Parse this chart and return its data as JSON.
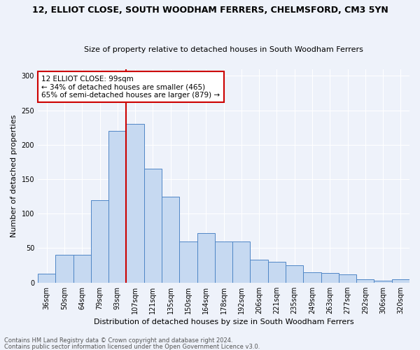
{
  "title": "12, ELLIOT CLOSE, SOUTH WOODHAM FERRERS, CHELMSFORD, CM3 5YN",
  "subtitle": "Size of property relative to detached houses in South Woodham Ferrers",
  "xlabel": "Distribution of detached houses by size in South Woodham Ferrers",
  "ylabel": "Number of detached properties",
  "categories": [
    "36sqm",
    "50sqm",
    "64sqm",
    "79sqm",
    "93sqm",
    "107sqm",
    "121sqm",
    "135sqm",
    "150sqm",
    "164sqm",
    "178sqm",
    "192sqm",
    "206sqm",
    "221sqm",
    "235sqm",
    "249sqm",
    "263sqm",
    "277sqm",
    "292sqm",
    "306sqm",
    "320sqm"
  ],
  "values": [
    13,
    40,
    40,
    120,
    220,
    230,
    165,
    125,
    60,
    72,
    60,
    60,
    33,
    30,
    25,
    15,
    14,
    12,
    5,
    3,
    5
  ],
  "bar_color": "#c6d9f1",
  "bar_edge_color": "#4f86c6",
  "annotation_text": "12 ELLIOT CLOSE: 99sqm\n← 34% of detached houses are smaller (465)\n65% of semi-detached houses are larger (879) →",
  "annotation_box_color": "#ffffff",
  "annotation_box_edge": "#cc0000",
  "annotation_text_color": "#000000",
  "vline_color": "#cc0000",
  "vline_x_index": 4.5,
  "background_color": "#eef2fa",
  "grid_color": "#ffffff",
  "footer_line1": "Contains HM Land Registry data © Crown copyright and database right 2024.",
  "footer_line2": "Contains public sector information licensed under the Open Government Licence v3.0.",
  "ylim": [
    0,
    310
  ],
  "yticks": [
    0,
    50,
    100,
    150,
    200,
    250,
    300
  ],
  "title_fontsize": 9,
  "subtitle_fontsize": 8,
  "ylabel_fontsize": 8,
  "xlabel_fontsize": 8,
  "tick_fontsize": 7,
  "annotation_fontsize": 7.5,
  "footer_fontsize": 6
}
